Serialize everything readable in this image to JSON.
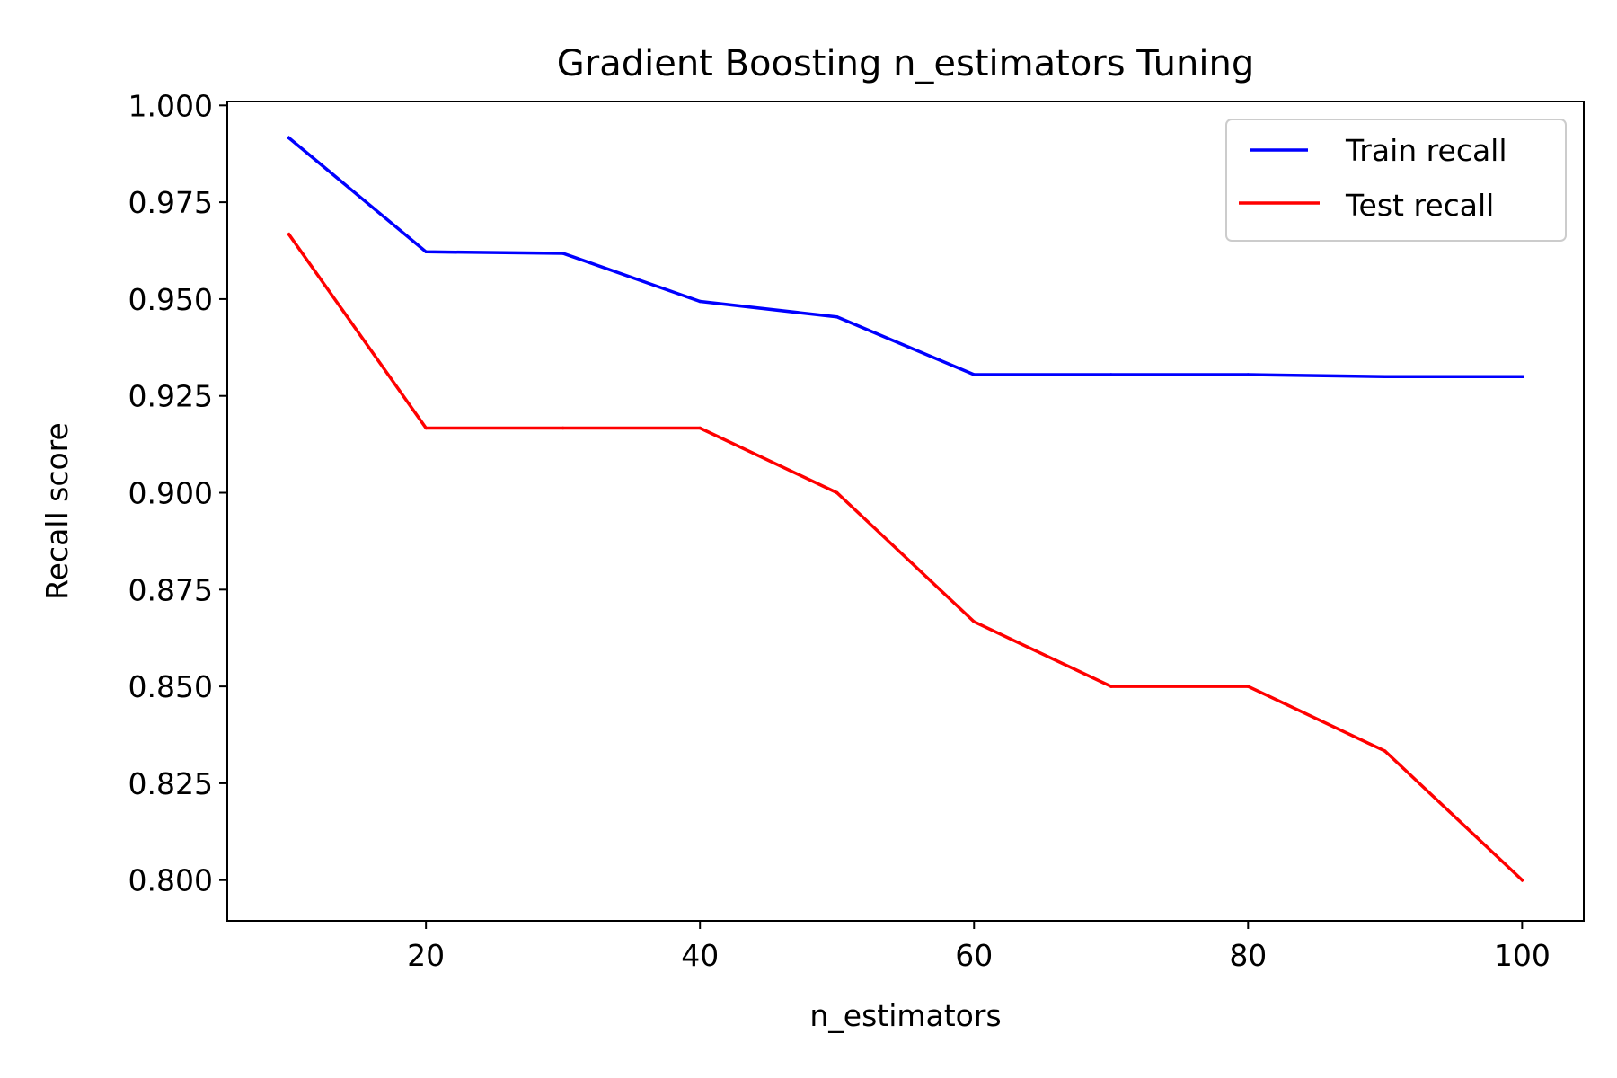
{
  "chart_data": {
    "type": "line",
    "title": "Gradient Boosting n_estimators Tuning",
    "xlabel": "n_estimators",
    "ylabel": "Recall score",
    "x": [
      10,
      20,
      30,
      40,
      50,
      60,
      70,
      80,
      90,
      100
    ],
    "xlim": [
      5.5,
      104.5
    ],
    "ylim": [
      0.7895,
      1.001
    ],
    "xticks": [
      20,
      40,
      60,
      80,
      100
    ],
    "xtick_labels": [
      "20",
      "40",
      "60",
      "80",
      "100"
    ],
    "yticks": [
      0.8,
      0.825,
      0.85,
      0.875,
      0.9,
      0.925,
      0.95,
      0.975,
      1.0
    ],
    "ytick_labels": [
      "0.800",
      "0.825",
      "0.850",
      "0.875",
      "0.900",
      "0.925",
      "0.950",
      "0.975",
      "1.000"
    ],
    "grid": false,
    "legend_position": "top-right",
    "series": [
      {
        "name": "Train recall",
        "color": "#0000ff",
        "values": [
          0.9916,
          0.9622,
          0.9618,
          0.9494,
          0.9454,
          0.9305,
          0.9305,
          0.9305,
          0.93,
          0.93
        ]
      },
      {
        "name": "Test recall",
        "color": "#ff0000",
        "values": [
          0.9667,
          0.9167,
          0.9167,
          0.9167,
          0.9,
          0.8667,
          0.85,
          0.85,
          0.8333,
          0.8
        ]
      }
    ]
  }
}
